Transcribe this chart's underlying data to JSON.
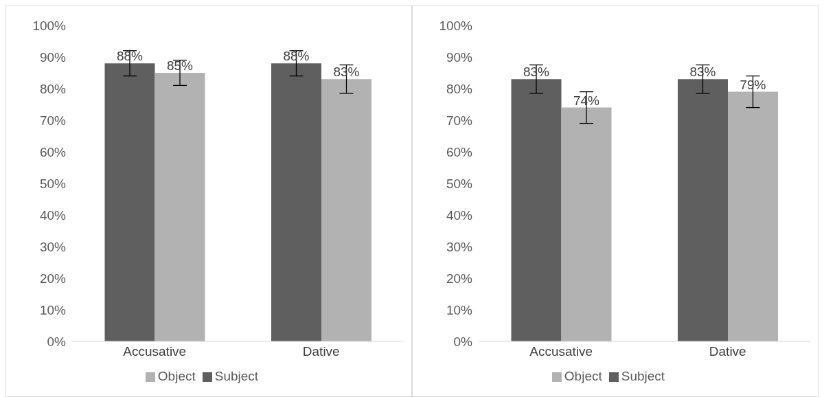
{
  "chart_data": [
    {
      "type": "bar",
      "categories": [
        "Accusative",
        "Dative"
      ],
      "ylim": [
        0,
        100
      ],
      "yticks": [
        {
          "value": 0,
          "label": "0%"
        },
        {
          "value": 10,
          "label": "10%"
        },
        {
          "value": 20,
          "label": "20%"
        },
        {
          "value": 30,
          "label": "30%"
        },
        {
          "value": 40,
          "label": "40%"
        },
        {
          "value": 50,
          "label": "50%"
        },
        {
          "value": 60,
          "label": "60%"
        },
        {
          "value": 70,
          "label": "70%"
        },
        {
          "value": 80,
          "label": "80%"
        },
        {
          "value": 90,
          "label": "90%"
        },
        {
          "value": 100,
          "label": "100%"
        }
      ],
      "grid": false,
      "legend": "bottom",
      "series": [
        {
          "name": "Subject",
          "color": "#5f5f5f",
          "values": [
            88,
            88
          ],
          "errors": [
            4,
            4
          ],
          "value_labels": [
            "88%",
            "88%"
          ]
        },
        {
          "name": "Object",
          "color": "#b2b2b2",
          "values": [
            85,
            83
          ],
          "errors": [
            4,
            4.5
          ],
          "value_labels": [
            "85%",
            "83%"
          ]
        }
      ]
    },
    {
      "type": "bar",
      "categories": [
        "Accusative",
        "Dative"
      ],
      "ylim": [
        0,
        100
      ],
      "yticks": [
        {
          "value": 0,
          "label": "0%"
        },
        {
          "value": 10,
          "label": "10%"
        },
        {
          "value": 20,
          "label": "20%"
        },
        {
          "value": 30,
          "label": "30%"
        },
        {
          "value": 40,
          "label": "40%"
        },
        {
          "value": 50,
          "label": "50%"
        },
        {
          "value": 60,
          "label": "60%"
        },
        {
          "value": 70,
          "label": "70%"
        },
        {
          "value": 80,
          "label": "80%"
        },
        {
          "value": 90,
          "label": "90%"
        },
        {
          "value": 100,
          "label": "100%"
        }
      ],
      "grid": false,
      "legend": "bottom",
      "series": [
        {
          "name": "Subject",
          "color": "#5f5f5f",
          "values": [
            83,
            83
          ],
          "errors": [
            4.5,
            4.5
          ],
          "value_labels": [
            "83%",
            "83%"
          ]
        },
        {
          "name": "Object",
          "color": "#b2b2b2",
          "values": [
            74,
            79
          ],
          "errors": [
            5,
            5
          ],
          "value_labels": [
            "74%",
            "79%"
          ]
        }
      ]
    }
  ]
}
